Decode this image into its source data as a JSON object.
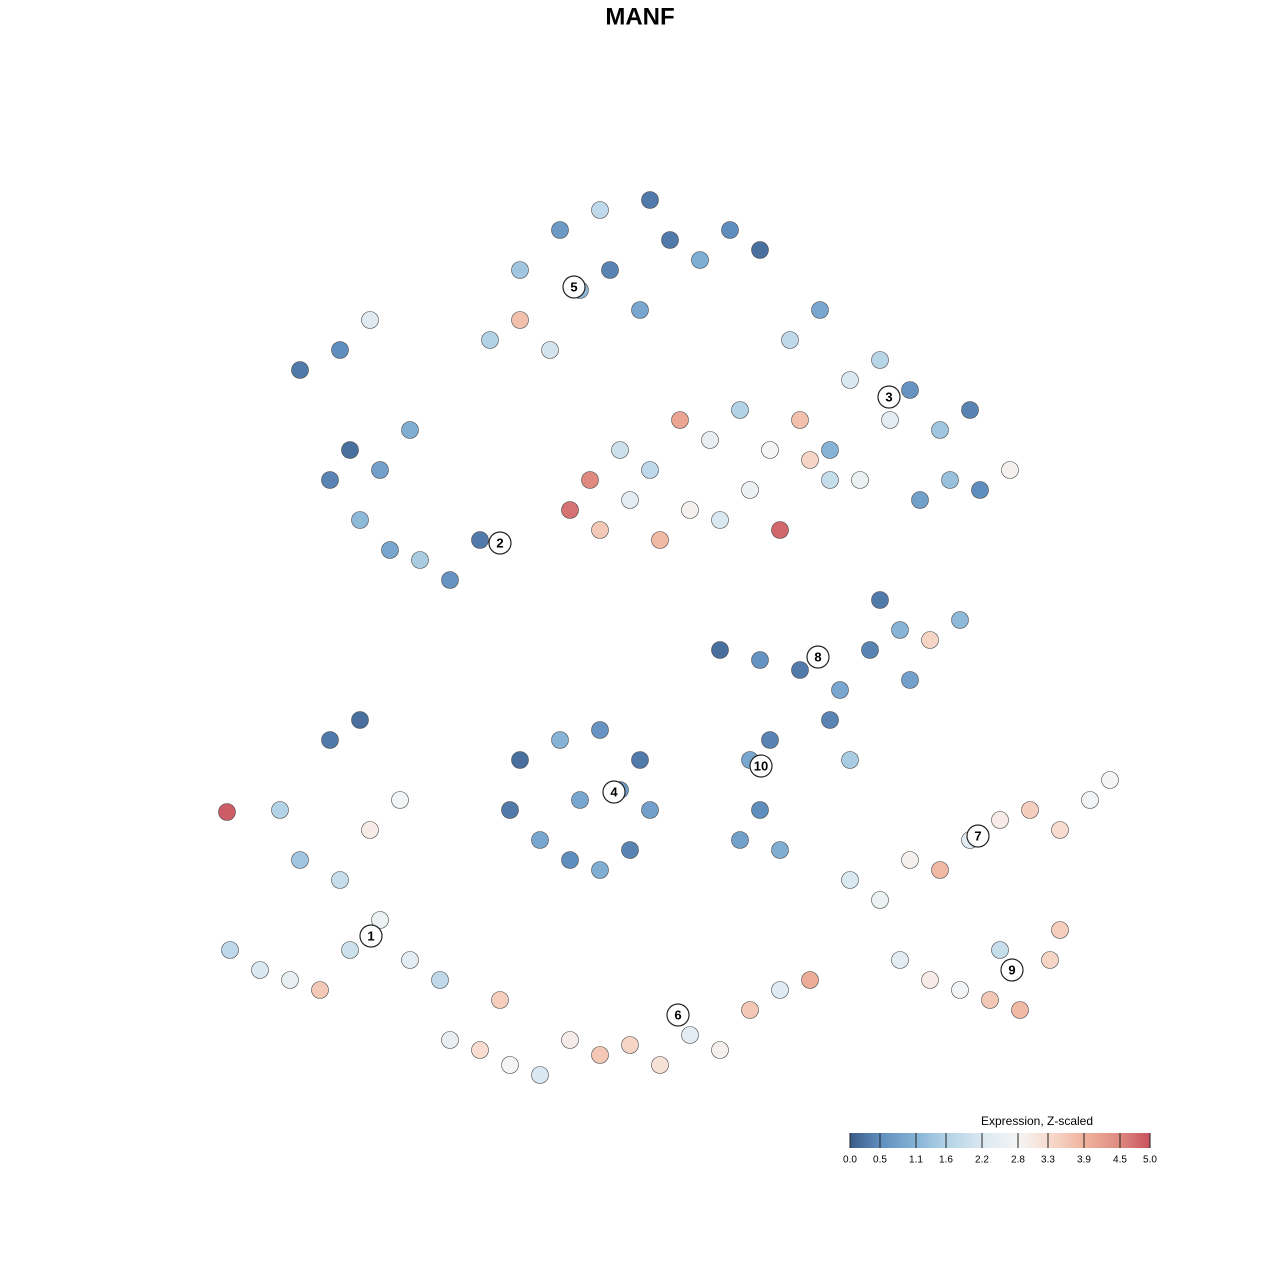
{
  "chart_data": {
    "type": "scatter",
    "title": "MANF",
    "xlim": [
      0,
      1280
    ],
    "ylim": [
      1280,
      0
    ],
    "x": [
      230,
      260,
      290,
      320,
      350,
      380,
      410,
      300,
      340,
      370,
      400,
      330,
      280,
      360,
      227,
      450,
      480,
      510,
      540,
      570,
      600,
      630,
      660,
      690,
      720,
      750,
      780,
      810,
      440,
      500,
      900,
      930,
      960,
      990,
      1020,
      1050,
      1060,
      1000,
      850,
      880,
      910,
      940,
      970,
      1000,
      1030,
      1060,
      1090,
      1110,
      510,
      540,
      570,
      600,
      630,
      650,
      520,
      560,
      600,
      640,
      580,
      620,
      740,
      760,
      780,
      750,
      770,
      720,
      760,
      800,
      840,
      870,
      900,
      930,
      960,
      880,
      910,
      830,
      850,
      330,
      360,
      390,
      420,
      450,
      480,
      350,
      380,
      410,
      300,
      340,
      370,
      570,
      600,
      630,
      660,
      690,
      720,
      750,
      780,
      810,
      590,
      620,
      650,
      680,
      710,
      740,
      770,
      800,
      830,
      830,
      860,
      890,
      920,
      950,
      980,
      1010,
      850,
      880,
      910,
      940,
      790,
      820,
      970,
      490,
      520,
      550,
      580,
      610,
      640,
      670,
      700,
      730,
      760,
      520,
      560,
      600,
      650
    ],
    "y": [
      330,
      310,
      300,
      290,
      330,
      360,
      320,
      420,
      400,
      450,
      480,
      540,
      470,
      560,
      468,
      240,
      230,
      215,
      205,
      240,
      225,
      235,
      215,
      245,
      230,
      270,
      290,
      300,
      300,
      280,
      320,
      300,
      290,
      280,
      270,
      320,
      350,
      330,
      400,
      380,
      420,
      410,
      440,
      460,
      470,
      450,
      480,
      500,
      470,
      440,
      420,
      410,
      430,
      470,
      520,
      540,
      550,
      520,
      480,
      490,
      440,
      470,
      430,
      520,
      540,
      630,
      620,
      610,
      590,
      630,
      650,
      640,
      660,
      680,
      600,
      560,
      520,
      800,
      760,
      730,
      720,
      700,
      740,
      830,
      810,
      850,
      910,
      930,
      960,
      770,
      750,
      780,
      740,
      770,
      760,
      790,
      750,
      820,
      800,
      830,
      810,
      860,
      840,
      870,
      830,
      860,
      800,
      830,
      800,
      860,
      780,
      800,
      790,
      810,
      900,
      920,
      890,
      850,
      940,
      970,
      870,
      940,
      960,
      930,
      990,
      1010,
      970,
      1040,
      1020,
      1050,
      1030,
      1010,
      1050,
      1070,
      1080
    ],
    "values": [
      1.8,
      2.2,
      2.5,
      3.6,
      2.0,
      2.6,
      2.4,
      1.4,
      1.9,
      3.0,
      2.7,
      0.3,
      1.6,
      0.2,
      4.9,
      2.5,
      3.3,
      2.8,
      2.2,
      3.0,
      3.6,
      3.4,
      3.2,
      2.4,
      2.9,
      3.6,
      2.3,
      4.0,
      1.8,
      3.5,
      2.4,
      3.0,
      2.7,
      3.6,
      3.8,
      3.4,
      3.5,
      1.9,
      2.2,
      2.6,
      2.9,
      3.8,
      2.4,
      3.0,
      3.5,
      3.3,
      2.7,
      2.8,
      0.3,
      0.9,
      0.5,
      1.0,
      0.4,
      0.8,
      0.2,
      1.1,
      0.6,
      0.3,
      0.9,
      0.7,
      0.8,
      0.5,
      1.0,
      0.9,
      0.4,
      0.2,
      0.6,
      0.3,
      0.9,
      0.4,
      1.1,
      3.4,
      1.2,
      0.3,
      0.8,
      0.4,
      1.5,
      0.4,
      1.2,
      0.9,
      1.5,
      0.6,
      0.3,
      0.2,
      0.8,
      1.0,
      0.3,
      0.5,
      2.3,
      4.7,
      3.6,
      2.4,
      3.8,
      2.9,
      2.2,
      2.6,
      4.8,
      3.4,
      4.5,
      2.0,
      1.8,
      4.1,
      2.5,
      1.6,
      2.8,
      3.7,
      1.9,
      1.1,
      2.6,
      2.4,
      0.8,
      1.3,
      0.5,
      2.9,
      2.2,
      1.7,
      0.6,
      1.4,
      1.8,
      0.9,
      0.4,
      1.6,
      3.7,
      2.1,
      1.2,
      0.4,
      0.9,
      0.3,
      1.0,
      0.5,
      0.2,
      1.4,
      0.7,
      1.8,
      0.3
    ],
    "clusters": [
      {
        "label": "1",
        "x": 371,
        "y": 344
      },
      {
        "label": "2",
        "x": 500,
        "y": 737
      },
      {
        "label": "3",
        "x": 889,
        "y": 883
      },
      {
        "label": "4",
        "x": 614,
        "y": 488
      },
      {
        "label": "5",
        "x": 574,
        "y": 993
      },
      {
        "label": "6",
        "x": 678,
        "y": 265
      },
      {
        "label": "7",
        "x": 978,
        "y": 444
      },
      {
        "label": "8",
        "x": 818,
        "y": 623
      },
      {
        "label": "9",
        "x": 1012,
        "y": 310
      },
      {
        "label": "10",
        "x": 761,
        "y": 514
      }
    ],
    "colorbar": {
      "title": "Expression, Z-scaled",
      "lim": [
        0,
        5
      ],
      "ticks": [
        {
          "value": 0,
          "label": "0.0"
        },
        0.5,
        1.1,
        1.6,
        2.2,
        2.8,
        3.3,
        3.9,
        4.5,
        {
          "value": 5,
          "label": "5.0"
        }
      ],
      "colors": [
        "#3b5b8a",
        "#5f8dbd",
        "#86b3d6",
        "#b2d2e6",
        "#dae8f1",
        "#f5f5f5",
        "#f7dccf",
        "#f0b39d",
        "#de8a80",
        "#c8515e"
      ]
    }
  }
}
